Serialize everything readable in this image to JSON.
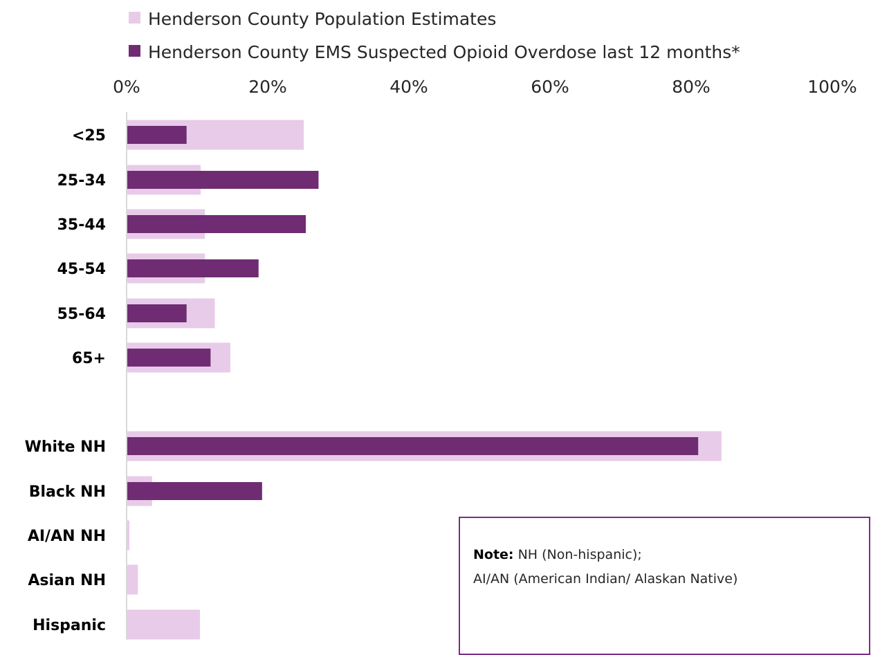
{
  "chart_data": {
    "type": "bar",
    "orientation": "horizontal",
    "categories": [
      "<25",
      "25-34",
      "35-44",
      "45-54",
      "55-64",
      "65+",
      "White NH",
      "Black NH",
      "AI/AN NH",
      "Asian NH",
      "Hispanic"
    ],
    "series": [
      {
        "name": "Henderson County Population Estimates",
        "color": "#e7cbe8",
        "values": [
          25.1,
          10.5,
          11.1,
          11.1,
          12.5,
          14.7,
          84.3,
          3.6,
          0.4,
          1.6,
          10.4
        ]
      },
      {
        "name": "Henderson County EMS Suspected Opioid Overdose last 12 months*",
        "color": "#6f2c73",
        "values": [
          8.5,
          27.2,
          25.4,
          18.7,
          8.5,
          11.9,
          81.0,
          19.2,
          0,
          0,
          0
        ]
      }
    ],
    "x_ticks": [
      "0%",
      "20%",
      "40%",
      "60%",
      "80%",
      "100%"
    ],
    "xlim": [
      0,
      100
    ],
    "legend_position": "top",
    "grid": false
  },
  "note": {
    "label": "Note:",
    "line1": "NH (Non-hispanic);",
    "line2": "AI/AN (American Indian/ Alaskan Native)"
  }
}
